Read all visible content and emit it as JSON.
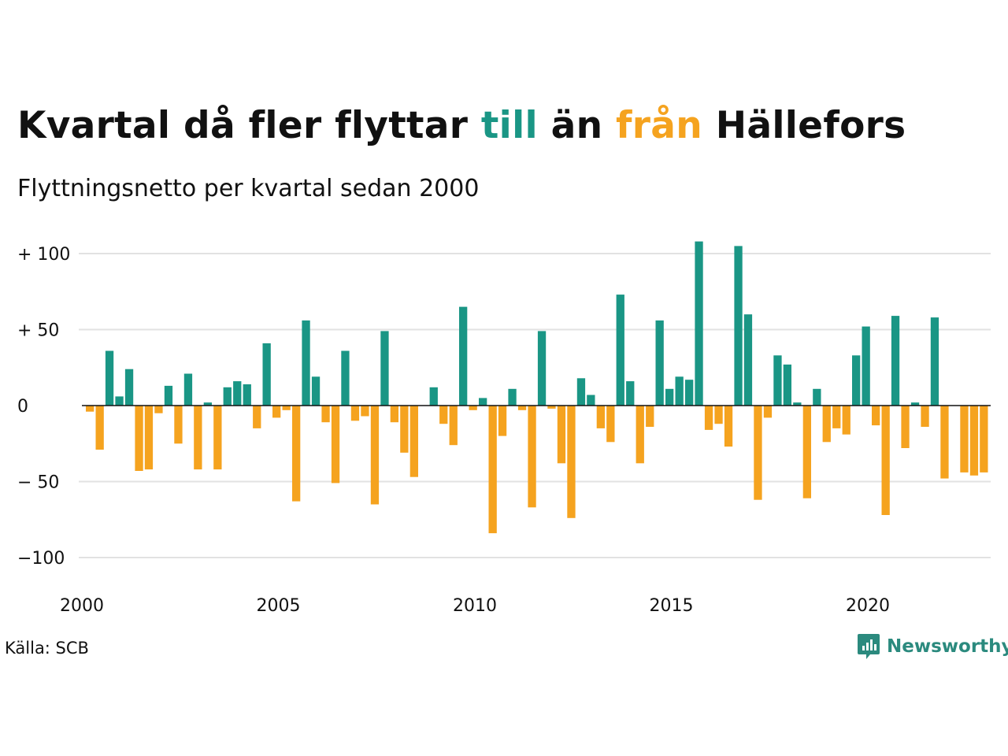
{
  "title": {
    "part1": "Kvartal då fler flyttar ",
    "till": "till",
    "part2": " än ",
    "fran": "från",
    "part3": " Hällefors"
  },
  "subtitle": "Flyttningsnetto per kvartal sedan 2000",
  "source": "Källa: SCB",
  "brand": "Newsworthy",
  "colors": {
    "positive": "#1a9685",
    "negative": "#f5a31f",
    "grid": "#e2e2e2",
    "axis": "#111111",
    "brand": "#2b8a7e"
  },
  "chart_data": {
    "type": "bar",
    "title": "Kvartal då fler flyttar till än från Hällefors",
    "subtitle": "Flyttningsnetto per kvartal sedan 2000",
    "xlabel": "",
    "ylabel": "",
    "x_start": 2000,
    "periods_per_year": 4,
    "x_ticks": [
      {
        "value": 2000,
        "label": "2000"
      },
      {
        "value": 2005,
        "label": "2005"
      },
      {
        "value": 2010,
        "label": "2010"
      },
      {
        "value": 2015,
        "label": "2015"
      },
      {
        "value": 2020,
        "label": "2020"
      }
    ],
    "y_ticks": [
      {
        "value": 100,
        "label": "+ 100"
      },
      {
        "value": 50,
        "label": "+  50"
      },
      {
        "value": 0,
        "label": "0"
      },
      {
        "value": -50,
        "label": "− 50"
      },
      {
        "value": -100,
        "label": "−100"
      }
    ],
    "ylim": [
      -105,
      110
    ],
    "grid": true,
    "series": [
      {
        "values": [
          -4,
          -29,
          36,
          6,
          24,
          -43,
          -42,
          -5,
          13,
          -25,
          21,
          -42,
          2,
          -42,
          12,
          16,
          14,
          -15,
          41,
          -8,
          -3,
          -63,
          56,
          19,
          -11,
          -51,
          36,
          -10,
          -7,
          -65,
          49,
          -11,
          -31,
          -47,
          0,
          12,
          -12,
          -26,
          65,
          -3,
          5,
          -84,
          -20,
          11,
          -3,
          -67,
          49,
          -2,
          -38,
          -74,
          18,
          7,
          -15,
          -24,
          73,
          16,
          -38,
          -14,
          56,
          11,
          19,
          17,
          108,
          -16,
          -12,
          -27,
          105,
          60,
          -62,
          -8,
          33,
          27,
          2,
          -61,
          11,
          -24,
          -15,
          -19,
          33,
          52,
          -13,
          -72,
          59,
          -28,
          2,
          -14,
          58,
          -48,
          0,
          -44,
          -46,
          -44
        ]
      }
    ]
  }
}
